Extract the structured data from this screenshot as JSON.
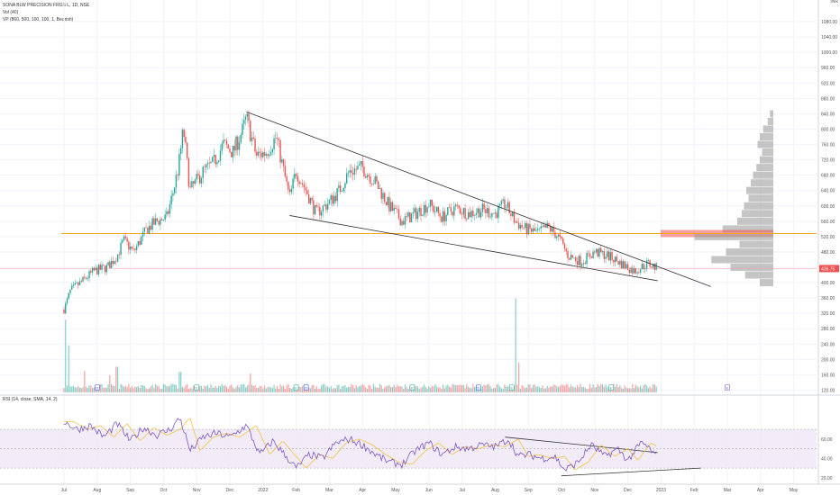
{
  "legend": {
    "symbol_line": "SONA BLW PRECISION FRGS L, 1D, NSE",
    "vol_line": "Vol (40)",
    "vp_line": "VP (860, 500, 100, 100, 1, Bearish)",
    "rsi_line": "RSI (14, close, SMA, 14, 2)"
  },
  "colors": {
    "up": "#26a69a",
    "down": "#ef5350",
    "trendline": "#333333",
    "support_line": "#f5a623",
    "current_price_line": "#ef9a9a",
    "rsi_line": "#7e57c2",
    "rsi_ma": "#f5c242",
    "rsi_band": "#ede7f6",
    "vp_bar": "#9e9e9e",
    "vp_poc": "#ef5350",
    "event_marker": "#26a69a",
    "price_label_bg": "#ef5350"
  },
  "chart_data": [
    {
      "type": "candlestick",
      "currency_label": "INR",
      "y_ticks": [
        1080,
        1040,
        1000,
        960,
        920,
        880,
        840,
        800,
        760,
        720,
        680,
        640,
        600,
        560,
        520,
        480,
        440,
        400,
        360,
        320,
        280,
        240,
        200,
        160,
        120
      ],
      "y_tick_labels": [
        "1080.00",
        "1040.00",
        "1000.00",
        "960.00",
        "920.00",
        "880.00",
        "840.00",
        "800.00",
        "760.00",
        "720.00",
        "680.00",
        "640.00",
        "600.00",
        "560.00",
        "520.00",
        "480.00",
        "440.00",
        "400.00",
        "360.00",
        "320.00",
        "280.00",
        "240.00",
        "200.00",
        "160.00",
        "120.00"
      ],
      "ylim": [
        100,
        1120
      ],
      "x_labels": [
        "Jul",
        "Aug",
        "Sep",
        "Oct",
        "Nov",
        "Dec",
        "2022",
        "Feb",
        "Mar",
        "Apr",
        "May",
        "Jun",
        "Jul",
        "Aug",
        "Sep",
        "Oct",
        "Nov",
        "Dec",
        "2023",
        "Feb",
        "Mar",
        "Apr",
        "May"
      ],
      "current_price": 436.75,
      "current_price_label": "436.75",
      "support_level": 528,
      "trendlines": [
        {
          "start": {
            "month": 5.5,
            "price": 845
          },
          "end": {
            "month": 19.5,
            "price": 390
          }
        },
        {
          "start": {
            "month": 6.8,
            "price": 575
          },
          "end": {
            "month": 17.9,
            "price": 405
          }
        }
      ],
      "price_path": [
        {
          "month": 0.0,
          "price": 330
        },
        {
          "month": 0.2,
          "price": 380
        },
        {
          "month": 0.5,
          "price": 400
        },
        {
          "month": 0.9,
          "price": 430
        },
        {
          "month": 1.3,
          "price": 440
        },
        {
          "month": 1.6,
          "price": 470
        },
        {
          "month": 1.8,
          "price": 510
        },
        {
          "month": 2.1,
          "price": 480
        },
        {
          "month": 2.5,
          "price": 540
        },
        {
          "month": 2.8,
          "price": 560
        },
        {
          "month": 3.1,
          "price": 570
        },
        {
          "month": 3.3,
          "price": 640
        },
        {
          "month": 3.45,
          "price": 700
        },
        {
          "month": 3.6,
          "price": 800
        },
        {
          "month": 3.8,
          "price": 640
        },
        {
          "month": 4.2,
          "price": 690
        },
        {
          "month": 4.5,
          "price": 710
        },
        {
          "month": 4.8,
          "price": 760
        },
        {
          "month": 5.1,
          "price": 740
        },
        {
          "month": 5.4,
          "price": 800
        },
        {
          "month": 5.5,
          "price": 830
        },
        {
          "month": 5.8,
          "price": 730
        },
        {
          "month": 6.1,
          "price": 740
        },
        {
          "month": 6.4,
          "price": 780
        },
        {
          "month": 6.6,
          "price": 700
        },
        {
          "month": 6.8,
          "price": 620
        },
        {
          "month": 7.0,
          "price": 690
        },
        {
          "month": 7.3,
          "price": 640
        },
        {
          "month": 7.6,
          "price": 580
        },
        {
          "month": 8.0,
          "price": 610
        },
        {
          "month": 8.3,
          "price": 640
        },
        {
          "month": 8.6,
          "price": 690
        },
        {
          "month": 9.0,
          "price": 700
        },
        {
          "month": 9.4,
          "price": 660
        },
        {
          "month": 9.8,
          "price": 600
        },
        {
          "month": 10.2,
          "price": 560
        },
        {
          "month": 10.6,
          "price": 580
        },
        {
          "month": 11.0,
          "price": 605
        },
        {
          "month": 11.4,
          "price": 570
        },
        {
          "month": 11.8,
          "price": 595
        },
        {
          "month": 12.2,
          "price": 580
        },
        {
          "month": 12.6,
          "price": 590
        },
        {
          "month": 13.0,
          "price": 580
        },
        {
          "month": 13.3,
          "price": 605
        },
        {
          "month": 13.6,
          "price": 560
        },
        {
          "month": 13.9,
          "price": 540
        },
        {
          "month": 14.3,
          "price": 530
        },
        {
          "month": 14.6,
          "price": 545
        },
        {
          "month": 14.9,
          "price": 520
        },
        {
          "month": 15.2,
          "price": 470
        },
        {
          "month": 15.6,
          "price": 455
        },
        {
          "month": 16.0,
          "price": 480
        },
        {
          "month": 16.4,
          "price": 470
        },
        {
          "month": 16.8,
          "price": 450
        },
        {
          "month": 17.2,
          "price": 430
        },
        {
          "month": 17.6,
          "price": 450
        },
        {
          "month": 17.9,
          "price": 436.75
        }
      ],
      "volume_profile": [
        {
          "price": 840,
          "width": 3
        },
        {
          "price": 820,
          "width": 5
        },
        {
          "price": 800,
          "width": 9
        },
        {
          "price": 780,
          "width": 12
        },
        {
          "price": 760,
          "width": 14
        },
        {
          "price": 740,
          "width": 10
        },
        {
          "price": 720,
          "width": 12
        },
        {
          "price": 700,
          "width": 15
        },
        {
          "price": 680,
          "width": 18
        },
        {
          "price": 660,
          "width": 20
        },
        {
          "price": 640,
          "width": 24
        },
        {
          "price": 620,
          "width": 22
        },
        {
          "price": 600,
          "width": 26
        },
        {
          "price": 580,
          "width": 28
        },
        {
          "price": 560,
          "width": 32
        },
        {
          "price": 540,
          "width": 45
        },
        {
          "price": 528,
          "width": 100
        },
        {
          "price": 520,
          "width": 70
        },
        {
          "price": 500,
          "width": 30
        },
        {
          "price": 480,
          "width": 42
        },
        {
          "price": 460,
          "width": 55
        },
        {
          "price": 440,
          "width": 38
        },
        {
          "price": 420,
          "width": 25
        },
        {
          "price": 400,
          "width": 12
        }
      ]
    },
    {
      "type": "bar",
      "title": "",
      "volume_path": [
        {
          "month": 0.05,
          "value": 85
        },
        {
          "month": 0.15,
          "value": 55
        },
        {
          "month": 0.6,
          "value": 25
        },
        {
          "month": 1.4,
          "value": 20
        },
        {
          "month": 1.6,
          "value": 30
        },
        {
          "month": 3.5,
          "value": 24
        },
        {
          "month": 5.6,
          "value": 22
        },
        {
          "month": 13.6,
          "value": 110
        },
        {
          "month": 13.7,
          "value": 35
        }
      ],
      "event_markers": [
        {
          "month": 1.0,
          "label": "D",
          "kind": "dividend"
        },
        {
          "month": 4.0,
          "label": "E",
          "kind": "earnings"
        },
        {
          "month": 7.0,
          "label": "E",
          "kind": "earnings"
        },
        {
          "month": 7.3,
          "label": "D",
          "kind": "dividend"
        },
        {
          "month": 10.5,
          "label": "E",
          "kind": "earnings"
        },
        {
          "month": 12.5,
          "label": "D",
          "kind": "dividend"
        },
        {
          "month": 13.5,
          "label": "E",
          "kind": "earnings"
        },
        {
          "month": 16.5,
          "label": "E",
          "kind": "earnings"
        },
        {
          "month": 20.0,
          "label": "E",
          "kind": "earnings_upcoming"
        }
      ]
    },
    {
      "type": "line",
      "title": "",
      "y_ticks": [
        60,
        40,
        20
      ],
      "y_tick_labels": [
        "60.00",
        "40.00",
        "20.00"
      ],
      "ylim": [
        18,
        98
      ],
      "band": [
        30,
        70
      ],
      "rsi_path": [
        {
          "month": 0.0,
          "value": 78
        },
        {
          "month": 0.4,
          "value": 70
        },
        {
          "month": 0.8,
          "value": 74
        },
        {
          "month": 1.2,
          "value": 62
        },
        {
          "month": 1.6,
          "value": 76
        },
        {
          "month": 2.0,
          "value": 58
        },
        {
          "month": 2.4,
          "value": 72
        },
        {
          "month": 2.8,
          "value": 64
        },
        {
          "month": 3.2,
          "value": 70
        },
        {
          "month": 3.5,
          "value": 82
        },
        {
          "month": 3.8,
          "value": 48
        },
        {
          "month": 4.2,
          "value": 62
        },
        {
          "month": 4.6,
          "value": 66
        },
        {
          "month": 5.0,
          "value": 62
        },
        {
          "month": 5.5,
          "value": 74
        },
        {
          "month": 5.9,
          "value": 44
        },
        {
          "month": 6.3,
          "value": 58
        },
        {
          "month": 6.7,
          "value": 42
        },
        {
          "month": 7.0,
          "value": 30
        },
        {
          "month": 7.4,
          "value": 44
        },
        {
          "month": 7.8,
          "value": 40
        },
        {
          "month": 8.2,
          "value": 56
        },
        {
          "month": 8.6,
          "value": 60
        },
        {
          "month": 9.0,
          "value": 54
        },
        {
          "month": 9.4,
          "value": 44
        },
        {
          "month": 9.8,
          "value": 36
        },
        {
          "month": 10.2,
          "value": 34
        },
        {
          "month": 10.6,
          "value": 48
        },
        {
          "month": 11.0,
          "value": 56
        },
        {
          "month": 11.4,
          "value": 44
        },
        {
          "month": 11.8,
          "value": 52
        },
        {
          "month": 12.2,
          "value": 50
        },
        {
          "month": 12.6,
          "value": 54
        },
        {
          "month": 13.0,
          "value": 52
        },
        {
          "month": 13.4,
          "value": 60
        },
        {
          "month": 13.7,
          "value": 42
        },
        {
          "month": 14.0,
          "value": 44
        },
        {
          "month": 14.4,
          "value": 40
        },
        {
          "month": 14.8,
          "value": 42
        },
        {
          "month": 15.1,
          "value": 28
        },
        {
          "month": 15.5,
          "value": 36
        },
        {
          "month": 15.9,
          "value": 54
        },
        {
          "month": 16.3,
          "value": 42
        },
        {
          "month": 16.7,
          "value": 50
        },
        {
          "month": 17.0,
          "value": 38
        },
        {
          "month": 17.4,
          "value": 56
        },
        {
          "month": 17.6,
          "value": 52
        },
        {
          "month": 17.9,
          "value": 40
        }
      ],
      "trendlines": [
        {
          "start": {
            "month": 13.3,
            "value": 62
          },
          "end": {
            "month": 17.9,
            "value": 46
          }
        },
        {
          "start": {
            "month": 15.0,
            "value": 22
          },
          "end": {
            "month": 19.2,
            "value": 30
          }
        }
      ]
    }
  ]
}
